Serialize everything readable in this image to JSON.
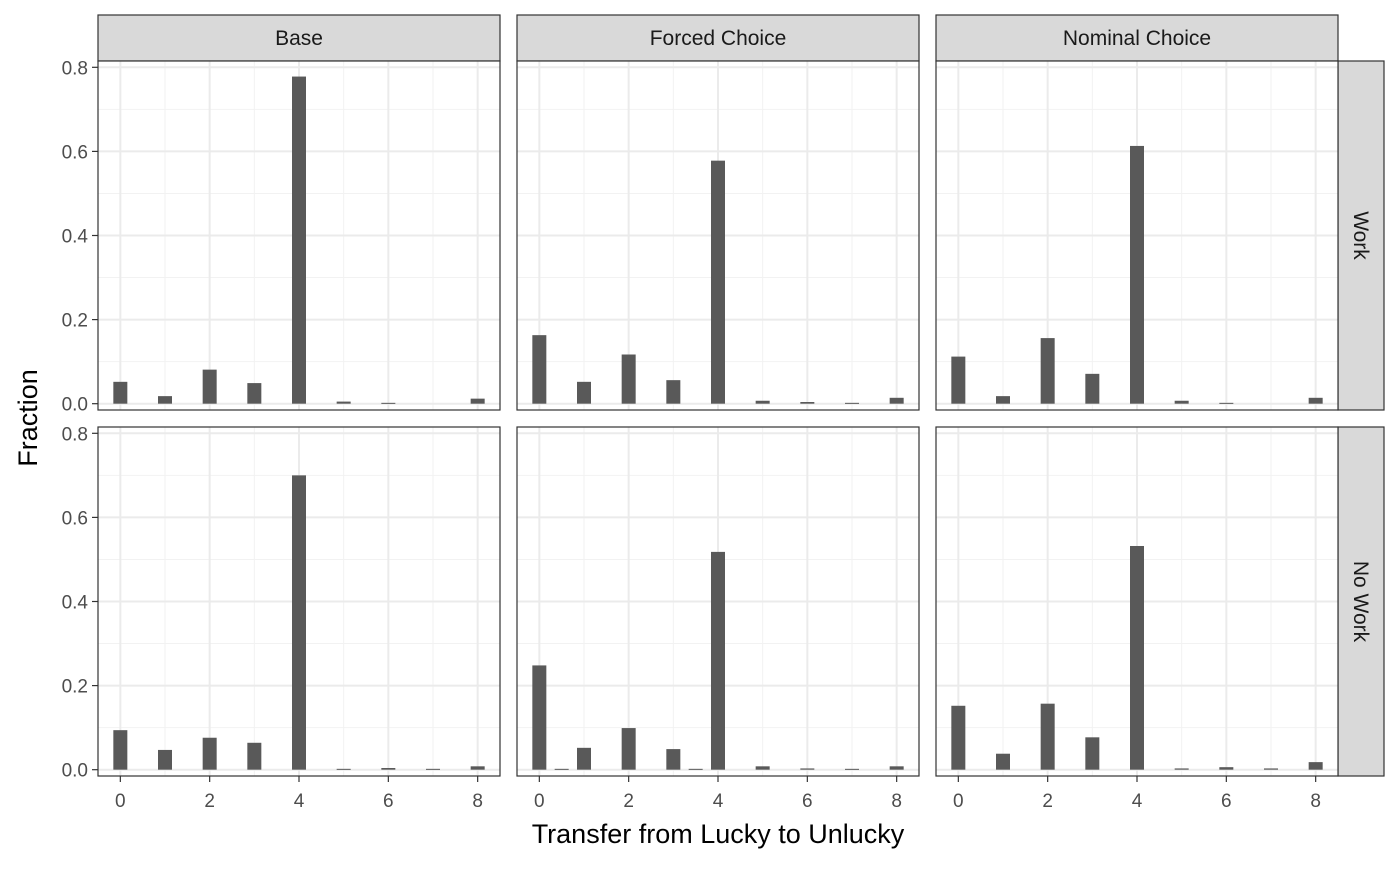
{
  "chart_data": {
    "type": "bar",
    "layout": "facet-grid",
    "xlabel": "Transfer from Lucky to Unlucky",
    "ylabel": "Fraction",
    "ylim": [
      -0.015,
      0.815
    ],
    "xlim": [
      -0.5,
      8.5
    ],
    "y_ticks": [
      0.0,
      0.2,
      0.4,
      0.6,
      0.8
    ],
    "y_tick_labels": [
      "0.0",
      "0.2",
      "0.4",
      "0.6",
      "0.8"
    ],
    "x_ticks": [
      0,
      2,
      4,
      6,
      8
    ],
    "x_tick_labels": [
      "0",
      "2",
      "4",
      "6",
      "8"
    ],
    "grid": true,
    "bar_color": "#595959",
    "strip_fill": "#d9d9d9",
    "panel_border": "#333333",
    "grid_major_color": "#ebebeb",
    "grid_minor_color": "#f2f2f2",
    "columns": [
      "Base",
      "Forced Choice",
      "Nominal Choice"
    ],
    "rows": [
      "Work",
      "No Work"
    ],
    "panels": [
      {
        "column": "Base",
        "row": "Work",
        "bars": [
          {
            "x": 0,
            "y": 0.052
          },
          {
            "x": 1,
            "y": 0.018
          },
          {
            "x": 2,
            "y": 0.081
          },
          {
            "x": 3,
            "y": 0.049
          },
          {
            "x": 4,
            "y": 0.778
          },
          {
            "x": 5,
            "y": 0.005
          },
          {
            "x": 6,
            "y": 0.002
          },
          {
            "x": 8,
            "y": 0.012
          }
        ]
      },
      {
        "column": "Forced Choice",
        "row": "Work",
        "bars": [
          {
            "x": 0,
            "y": 0.163
          },
          {
            "x": 1,
            "y": 0.052
          },
          {
            "x": 2,
            "y": 0.117
          },
          {
            "x": 3,
            "y": 0.056
          },
          {
            "x": 4,
            "y": 0.578
          },
          {
            "x": 5,
            "y": 0.007
          },
          {
            "x": 6,
            "y": 0.004
          },
          {
            "x": 7,
            "y": 0.002
          },
          {
            "x": 8,
            "y": 0.014
          }
        ]
      },
      {
        "column": "Nominal Choice",
        "row": "Work",
        "bars": [
          {
            "x": 0,
            "y": 0.112
          },
          {
            "x": 1,
            "y": 0.018
          },
          {
            "x": 2,
            "y": 0.156
          },
          {
            "x": 3,
            "y": 0.071
          },
          {
            "x": 4,
            "y": 0.613
          },
          {
            "x": 5,
            "y": 0.007
          },
          {
            "x": 6,
            "y": 0.002
          },
          {
            "x": 8,
            "y": 0.014
          }
        ]
      },
      {
        "column": "Base",
        "row": "No Work",
        "bars": [
          {
            "x": 0,
            "y": 0.094
          },
          {
            "x": 1,
            "y": 0.047
          },
          {
            "x": 2,
            "y": 0.076
          },
          {
            "x": 3,
            "y": 0.064
          },
          {
            "x": 4,
            "y": 0.7
          },
          {
            "x": 5,
            "y": 0.002
          },
          {
            "x": 6,
            "y": 0.004
          },
          {
            "x": 7,
            "y": 0.002
          },
          {
            "x": 8,
            "y": 0.008
          }
        ]
      },
      {
        "column": "Forced Choice",
        "row": "No Work",
        "bars": [
          {
            "x": 0,
            "y": 0.248
          },
          {
            "x": 0.5,
            "y": 0.002
          },
          {
            "x": 1,
            "y": 0.052
          },
          {
            "x": 2,
            "y": 0.099
          },
          {
            "x": 3,
            "y": 0.049
          },
          {
            "x": 3.5,
            "y": 0.002
          },
          {
            "x": 4,
            "y": 0.518
          },
          {
            "x": 5,
            "y": 0.008
          },
          {
            "x": 6,
            "y": 0.003
          },
          {
            "x": 7,
            "y": 0.002
          },
          {
            "x": 8,
            "y": 0.008
          }
        ]
      },
      {
        "column": "Nominal Choice",
        "row": "No Work",
        "bars": [
          {
            "x": 0,
            "y": 0.152
          },
          {
            "x": 1,
            "y": 0.038
          },
          {
            "x": 2,
            "y": 0.157
          },
          {
            "x": 3,
            "y": 0.077
          },
          {
            "x": 4,
            "y": 0.532
          },
          {
            "x": 5,
            "y": 0.003
          },
          {
            "x": 6,
            "y": 0.006
          },
          {
            "x": 7,
            "y": 0.003
          },
          {
            "x": 8,
            "y": 0.018
          }
        ]
      }
    ]
  }
}
